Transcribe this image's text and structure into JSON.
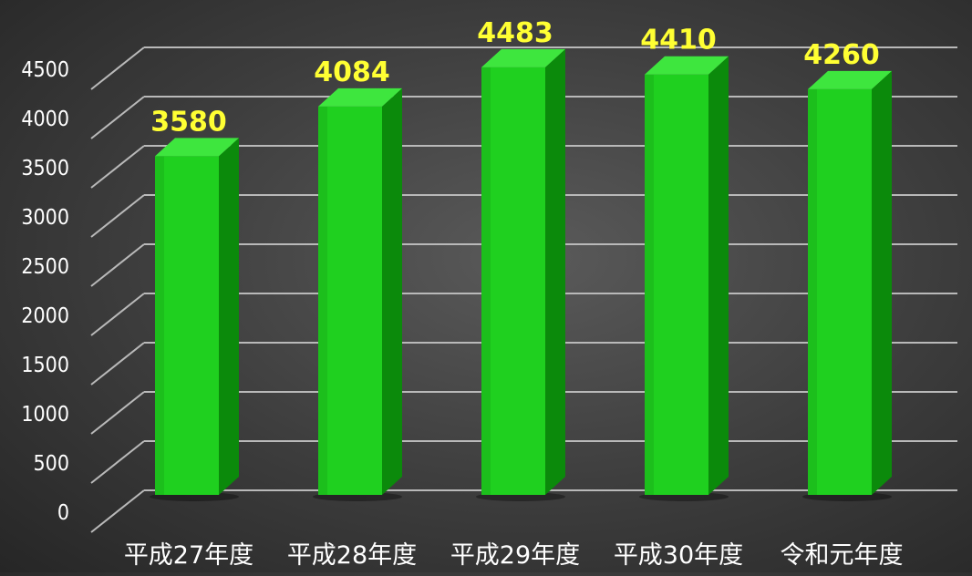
{
  "chart_data": {
    "type": "bar",
    "categories": [
      "平成27年度",
      "平成28年度",
      "平成29年度",
      "平成30年度",
      "令和元年度"
    ],
    "values": [
      3580,
      4084,
      4483,
      4410,
      4260
    ],
    "data_labels": [
      "3580",
      "4084",
      "4483",
      "4410",
      "4260"
    ],
    "y_ticks": [
      "0",
      "500",
      "1000",
      "1500",
      "2000",
      "2500",
      "3000",
      "3500",
      "4000",
      "4500"
    ],
    "ylim": [
      0,
      4500
    ],
    "grid": true,
    "legend": false,
    "style": "3d-column",
    "colors": {
      "bar_front": "#1fd01f",
      "bar_side": "#0b8a0b",
      "bar_top": "#3ee63e",
      "data_label": "#ffff33",
      "grid": "#b9b9b9"
    }
  }
}
